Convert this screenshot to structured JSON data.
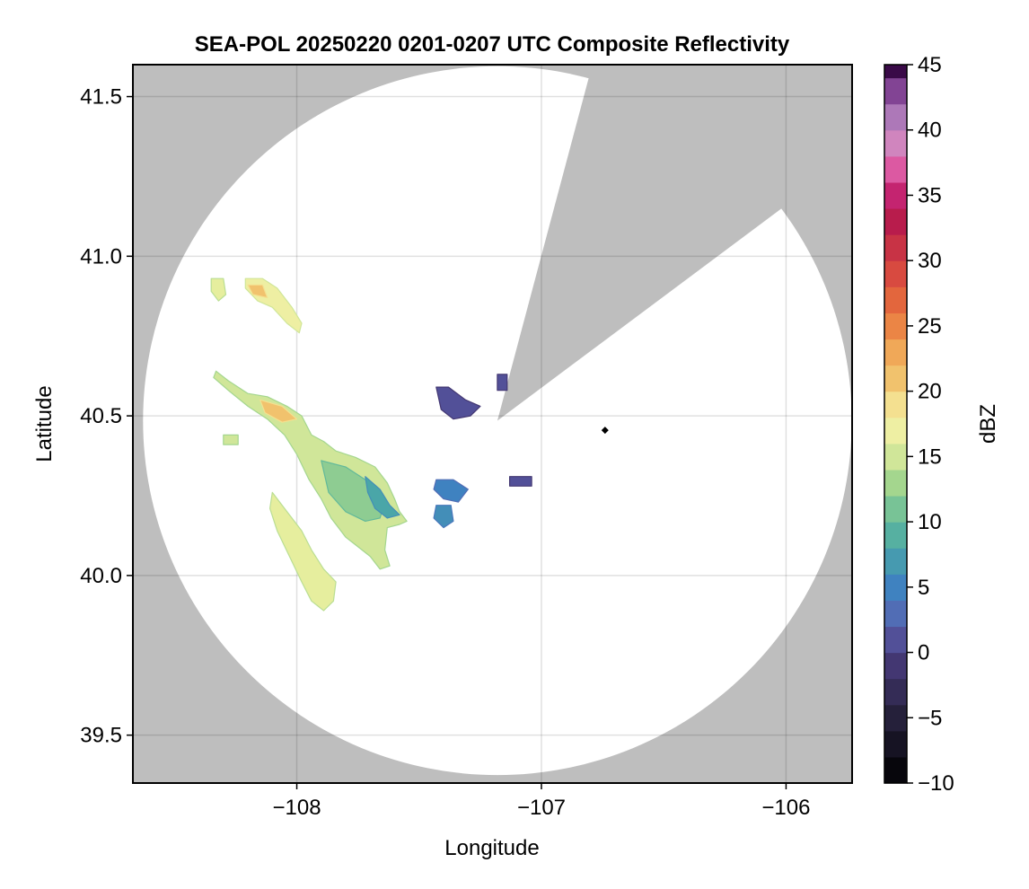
{
  "chart_data": {
    "type": "heatmap",
    "title": "SEA-POL 20250220 0201-0207 UTC Composite Reflectivity",
    "xlabel": "Longitude",
    "ylabel": "Latitude",
    "xlim": [
      -108.67,
      -105.73
    ],
    "ylim": [
      39.35,
      41.6
    ],
    "xticks": [
      -108,
      -107,
      -106
    ],
    "xtick_labels": [
      "−108",
      "−107",
      "−106"
    ],
    "yticks": [
      39.5,
      40.0,
      40.5,
      41.0,
      41.5
    ],
    "ytick_labels": [
      "39.5",
      "40.0",
      "40.5",
      "41.0",
      "41.5"
    ],
    "grid": true,
    "background_color": "#bebebe",
    "coverage_color": "#ffffff",
    "radar": {
      "center_lon": -107.18,
      "center_lat": 40.485,
      "radius_lat_deg": 1.11,
      "blocked_sector": {
        "edge_points": [
          [
            -106.82,
            41.52
          ],
          [
            -106.07,
            41.12
          ]
        ]
      }
    },
    "site_marker": {
      "lon": -106.74,
      "lat": 40.455,
      "color": "#000000"
    },
    "colorbar": {
      "label": "dBZ",
      "min": -10,
      "max": 45,
      "step": 2,
      "ticks": [
        -10,
        -5,
        0,
        5,
        10,
        15,
        20,
        25,
        30,
        35,
        40,
        45
      ],
      "tick_labels": [
        "−10",
        "−5",
        "0",
        "5",
        "10",
        "15",
        "20",
        "25",
        "30",
        "35",
        "40",
        "45"
      ],
      "colormap_stops": [
        [
          -10,
          "#000000"
        ],
        [
          -5,
          "#25203a"
        ],
        [
          0,
          "#4a3d80"
        ],
        [
          2,
          "#5a62b0"
        ],
        [
          5,
          "#3f82c0"
        ],
        [
          8,
          "#4aa6a8"
        ],
        [
          10,
          "#62b99a"
        ],
        [
          13,
          "#a4d68e"
        ],
        [
          16,
          "#e6ee9e"
        ],
        [
          18,
          "#f5f0a8"
        ],
        [
          20,
          "#f2cf78"
        ],
        [
          23,
          "#f0a858"
        ],
        [
          26,
          "#e8743c"
        ],
        [
          29,
          "#d84a40"
        ],
        [
          32,
          "#c02848"
        ],
        [
          34,
          "#b01050"
        ],
        [
          36,
          "#d83890"
        ],
        [
          38,
          "#e07ab4"
        ],
        [
          40,
          "#c090c8"
        ],
        [
          42,
          "#9a60a8"
        ],
        [
          44,
          "#6a2880"
        ],
        [
          45,
          "#3a0a48"
        ]
      ]
    },
    "echoes": [
      {
        "name": "echo-northwest-cell",
        "dbz": 16,
        "points": [
          [
            -108.35,
            40.93
          ],
          [
            -108.3,
            40.93
          ],
          [
            -108.29,
            40.88
          ],
          [
            -108.32,
            40.86
          ],
          [
            -108.35,
            40.89
          ]
        ]
      },
      {
        "name": "echo-northwest-band",
        "dbz": 17,
        "points": [
          [
            -108.21,
            40.93
          ],
          [
            -108.14,
            40.93
          ],
          [
            -108.08,
            40.9
          ],
          [
            -108.02,
            40.84
          ],
          [
            -107.98,
            40.79
          ],
          [
            -107.99,
            40.76
          ],
          [
            -108.04,
            40.79
          ],
          [
            -108.1,
            40.84
          ],
          [
            -108.16,
            40.86
          ],
          [
            -108.21,
            40.9
          ]
        ]
      },
      {
        "name": "echo-northwest-core",
        "dbz": 21,
        "points": [
          [
            -108.2,
            40.91
          ],
          [
            -108.14,
            40.91
          ],
          [
            -108.12,
            40.87
          ],
          [
            -108.18,
            40.88
          ]
        ]
      },
      {
        "name": "echo-main-body",
        "dbz": 15,
        "points": [
          [
            -108.33,
            40.64
          ],
          [
            -108.28,
            40.61
          ],
          [
            -108.2,
            40.57
          ],
          [
            -108.12,
            40.56
          ],
          [
            -108.04,
            40.53
          ],
          [
            -107.98,
            40.5
          ],
          [
            -107.94,
            40.44
          ],
          [
            -107.89,
            40.42
          ],
          [
            -107.84,
            40.39
          ],
          [
            -107.76,
            40.37
          ],
          [
            -107.68,
            40.34
          ],
          [
            -107.63,
            40.29
          ],
          [
            -107.6,
            40.24
          ],
          [
            -107.58,
            40.2
          ],
          [
            -107.55,
            40.17
          ],
          [
            -107.58,
            40.16
          ],
          [
            -107.63,
            40.15
          ],
          [
            -107.64,
            40.08
          ],
          [
            -107.62,
            40.03
          ],
          [
            -107.66,
            40.02
          ],
          [
            -107.7,
            40.06
          ],
          [
            -107.75,
            40.09
          ],
          [
            -107.8,
            40.12
          ],
          [
            -107.86,
            40.18
          ],
          [
            -107.9,
            40.24
          ],
          [
            -107.95,
            40.3
          ],
          [
            -108.0,
            40.38
          ],
          [
            -108.05,
            40.44
          ],
          [
            -108.12,
            40.49
          ],
          [
            -108.2,
            40.53
          ],
          [
            -108.28,
            40.58
          ],
          [
            -108.34,
            40.62
          ]
        ]
      },
      {
        "name": "echo-main-inner",
        "dbz": 12,
        "points": [
          [
            -107.9,
            40.36
          ],
          [
            -107.8,
            40.34
          ],
          [
            -107.7,
            40.29
          ],
          [
            -107.64,
            40.23
          ],
          [
            -107.66,
            40.18
          ],
          [
            -107.72,
            40.17
          ],
          [
            -107.8,
            40.2
          ],
          [
            -107.87,
            40.26
          ]
        ]
      },
      {
        "name": "echo-main-core",
        "dbz": 21,
        "points": [
          [
            -108.15,
            40.55
          ],
          [
            -108.06,
            40.53
          ],
          [
            -108.0,
            40.49
          ],
          [
            -108.06,
            40.48
          ],
          [
            -108.13,
            40.51
          ]
        ]
      },
      {
        "name": "echo-east-edge",
        "dbz": 8,
        "points": [
          [
            -107.72,
            40.31
          ],
          [
            -107.66,
            40.27
          ],
          [
            -107.62,
            40.22
          ],
          [
            -107.58,
            40.19
          ],
          [
            -107.63,
            40.18
          ],
          [
            -107.68,
            40.21
          ],
          [
            -107.71,
            40.26
          ]
        ]
      },
      {
        "name": "echo-southwest-arm",
        "dbz": 16,
        "points": [
          [
            -108.1,
            40.26
          ],
          [
            -108.04,
            40.2
          ],
          [
            -107.98,
            40.14
          ],
          [
            -107.94,
            40.08
          ],
          [
            -107.89,
            40.02
          ],
          [
            -107.84,
            39.98
          ],
          [
            -107.85,
            39.92
          ],
          [
            -107.89,
            39.89
          ],
          [
            -107.94,
            39.92
          ],
          [
            -107.98,
            39.98
          ],
          [
            -108.03,
            40.06
          ],
          [
            -108.08,
            40.14
          ],
          [
            -108.11,
            40.21
          ]
        ]
      },
      {
        "name": "echo-small-west",
        "dbz": 15,
        "points": [
          [
            -108.3,
            40.44
          ],
          [
            -108.24,
            40.44
          ],
          [
            -108.24,
            40.41
          ],
          [
            -108.3,
            40.41
          ]
        ]
      },
      {
        "name": "echo-north-cluster",
        "dbz": 1,
        "points": [
          [
            -107.43,
            40.59
          ],
          [
            -107.38,
            40.59
          ],
          [
            -107.31,
            40.55
          ],
          [
            -107.25,
            40.53
          ],
          [
            -107.29,
            40.5
          ],
          [
            -107.36,
            40.49
          ],
          [
            -107.41,
            40.52
          ]
        ]
      },
      {
        "name": "echo-north-fleck",
        "dbz": 1,
        "points": [
          [
            -107.18,
            40.63
          ],
          [
            -107.14,
            40.63
          ],
          [
            -107.14,
            40.58
          ],
          [
            -107.18,
            40.58
          ]
        ]
      },
      {
        "name": "echo-central-blue",
        "dbz": 5,
        "points": [
          [
            -107.43,
            40.3
          ],
          [
            -107.36,
            40.3
          ],
          [
            -107.3,
            40.27
          ],
          [
            -107.34,
            40.23
          ],
          [
            -107.4,
            40.24
          ],
          [
            -107.44,
            40.27
          ]
        ]
      },
      {
        "name": "echo-central-blue-south",
        "dbz": 6,
        "points": [
          [
            -107.43,
            40.22
          ],
          [
            -107.37,
            40.22
          ],
          [
            -107.36,
            40.17
          ],
          [
            -107.4,
            40.15
          ],
          [
            -107.44,
            40.18
          ]
        ]
      },
      {
        "name": "echo-east-fleck",
        "dbz": 1,
        "points": [
          [
            -107.13,
            40.31
          ],
          [
            -107.04,
            40.31
          ],
          [
            -107.04,
            40.28
          ],
          [
            -107.13,
            40.28
          ]
        ]
      }
    ]
  }
}
